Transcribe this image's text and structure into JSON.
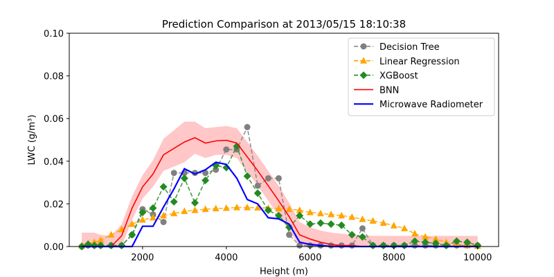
{
  "chart_data": {
    "type": "line",
    "title": "Prediction Comparison at 2013/05/15 18:10:38",
    "xlabel": "Height (m)",
    "ylabel": "LWC (g/m³)",
    "xlim": [
      250,
      10500
    ],
    "ylim": [
      0,
      0.1
    ],
    "xticks": [
      2000,
      4000,
      6000,
      8000,
      10000
    ],
    "yticks": [
      0.0,
      0.02,
      0.04,
      0.06,
      0.08,
      0.1
    ],
    "xtick_labels": [
      "2000",
      "4000",
      "6000",
      "8000",
      "10000"
    ],
    "ytick_labels": [
      "0.00",
      "0.02",
      "0.04",
      "0.06",
      "0.08",
      "0.10"
    ],
    "legend_position": "top-right",
    "series": [
      {
        "name": "Decision Tree",
        "color": "#808080",
        "style": "dashed",
        "marker": "circle",
        "x": [
          550,
          700,
          850,
          1000,
          1250,
          1500,
          1750,
          2000,
          2250,
          2500,
          2750,
          3000,
          3250,
          3500,
          3750,
          4000,
          4250,
          4500,
          4750,
          5000,
          5250,
          5500,
          5750,
          6000,
          6250,
          6500,
          6750,
          7000,
          7250,
          7500,
          7750,
          8000,
          8250,
          8500,
          8750,
          9000,
          9250,
          9500,
          9750,
          10000
        ],
        "y": [
          0.0,
          0.0005,
          0.0005,
          0.0005,
          0.0005,
          0.0005,
          0.0055,
          0.0175,
          0.015,
          0.0115,
          0.0345,
          0.0345,
          0.0345,
          0.0345,
          0.036,
          0.0455,
          0.0455,
          0.056,
          0.0285,
          0.032,
          0.032,
          0.0055,
          0.0005,
          0.0005,
          0.0005,
          0.0005,
          0.0005,
          0.0005,
          0.0085,
          0.0005,
          0.0005,
          0.0005,
          0.0005,
          0.0005,
          0.0005,
          0.0005,
          0.0005,
          0.0005,
          0.0005,
          0.0005
        ]
      },
      {
        "name": "Linear Regression",
        "color": "#FFA500",
        "style": "dashed",
        "marker": "triangle",
        "x": [
          550,
          700,
          850,
          1000,
          1250,
          1500,
          1750,
          2000,
          2250,
          2500,
          2750,
          3000,
          3250,
          3500,
          3750,
          4000,
          4250,
          4500,
          4750,
          5000,
          5250,
          5500,
          5750,
          6000,
          6250,
          6500,
          6750,
          7000,
          7250,
          7500,
          7750,
          8000,
          8250,
          8500,
          8750,
          9000,
          9250,
          9500,
          9750,
          10000
        ],
        "y": [
          0.0005,
          0.0015,
          0.002,
          0.003,
          0.0055,
          0.008,
          0.0105,
          0.0125,
          0.0135,
          0.0145,
          0.0155,
          0.0165,
          0.017,
          0.0175,
          0.0178,
          0.018,
          0.0183,
          0.0183,
          0.0182,
          0.018,
          0.0178,
          0.0175,
          0.017,
          0.016,
          0.0155,
          0.015,
          0.0145,
          0.0138,
          0.0128,
          0.012,
          0.011,
          0.0098,
          0.0085,
          0.006,
          0.0045,
          0.0035,
          0.002,
          0.001,
          0.0005,
          0.0002
        ]
      },
      {
        "name": "XGBoost",
        "color": "#228B22",
        "style": "dashed",
        "marker": "diamond",
        "x": [
          550,
          700,
          850,
          1000,
          1250,
          1500,
          1750,
          2000,
          2250,
          2500,
          2750,
          3000,
          3250,
          3500,
          3750,
          4000,
          4250,
          4500,
          4750,
          5000,
          5250,
          5500,
          5750,
          6000,
          6250,
          6500,
          6750,
          7000,
          7250,
          7500,
          7750,
          8000,
          8250,
          8500,
          8750,
          9000,
          9250,
          9500,
          9750,
          10000
        ],
        "y": [
          0.0,
          0.001,
          0.0005,
          0.0005,
          0.0005,
          0.0005,
          0.0055,
          0.016,
          0.018,
          0.028,
          0.021,
          0.032,
          0.0205,
          0.031,
          0.038,
          0.037,
          0.047,
          0.033,
          0.025,
          0.017,
          0.0145,
          0.009,
          0.0145,
          0.0105,
          0.011,
          0.0105,
          0.01,
          0.0055,
          0.0045,
          0.0005,
          0.0005,
          0.0005,
          0.0005,
          0.0025,
          0.002,
          0.0015,
          0.0005,
          0.0025,
          0.002,
          0.0005
        ]
      },
      {
        "name": "BNN",
        "color": "#FF0000",
        "style": "solid",
        "marker": "none",
        "x": [
          550,
          700,
          850,
          1000,
          1250,
          1500,
          1750,
          2000,
          2250,
          2500,
          2750,
          3000,
          3250,
          3500,
          3750,
          4000,
          4250,
          4500,
          4750,
          5000,
          5250,
          5500,
          5750,
          6000,
          6250,
          6500,
          6750,
          7000,
          7250,
          7500,
          7750,
          8000,
          8250,
          8500,
          8750,
          9000,
          9250,
          9500,
          9750,
          10000
        ],
        "y": [
          0.0,
          0.0,
          0.0,
          0.0,
          0.0,
          0.005,
          0.018,
          0.028,
          0.034,
          0.043,
          0.046,
          0.049,
          0.051,
          0.0485,
          0.0495,
          0.0498,
          0.0485,
          0.042,
          0.0355,
          0.0285,
          0.0215,
          0.014,
          0.0055,
          0.0035,
          0.002,
          0.001,
          0.0005,
          0.0005,
          0.0,
          0.0,
          0.0,
          0.0,
          0.0,
          0.0,
          0.0,
          0.0,
          0.0,
          0.0,
          0.0,
          0.0
        ],
        "band_upper": [
          0.0065,
          0.0065,
          0.0065,
          0.0055,
          0.005,
          0.0105,
          0.0235,
          0.0335,
          0.0405,
          0.0505,
          0.0545,
          0.0585,
          0.0585,
          0.0555,
          0.056,
          0.0565,
          0.0555,
          0.049,
          0.0425,
          0.0355,
          0.0285,
          0.0205,
          0.0115,
          0.009,
          0.0075,
          0.0065,
          0.006,
          0.0055,
          0.0055,
          0.005,
          0.005,
          0.005,
          0.005,
          0.005,
          0.005,
          0.005,
          0.005,
          0.005,
          0.005,
          0.005
        ],
        "band_lower": [
          0.0,
          0.0,
          0.0,
          0.0,
          0.0,
          0.0,
          0.0125,
          0.0225,
          0.028,
          0.0355,
          0.0375,
          0.0395,
          0.0435,
          0.0415,
          0.043,
          0.043,
          0.0415,
          0.035,
          0.0285,
          0.0215,
          0.0145,
          0.0075,
          0.0005,
          0.0,
          0.0,
          0.0,
          0.0,
          0.0,
          0.0,
          0.0,
          0.0,
          0.0,
          0.0,
          0.0,
          0.0,
          0.0,
          0.0,
          0.0,
          0.0,
          0.0
        ]
      },
      {
        "name": "Microwave Radiometer",
        "color": "#0000FF",
        "style": "solid",
        "marker": "none",
        "x": [
          550,
          700,
          850,
          1000,
          1250,
          1500,
          1750,
          2000,
          2250,
          2500,
          2750,
          3000,
          3250,
          3500,
          3750,
          4000,
          4250,
          4500,
          4750,
          5000,
          5250,
          5500,
          5750,
          6000,
          6250,
          6500,
          6750,
          7000,
          7250,
          7500,
          7750,
          8000,
          8250,
          8500,
          8750,
          9000,
          9250,
          9500,
          9750,
          10000
        ],
        "y": [
          0.0,
          0.0,
          0.0,
          0.0,
          0.0,
          0.0,
          0.0,
          0.0095,
          0.0095,
          0.0185,
          0.027,
          0.0365,
          0.034,
          0.036,
          0.0395,
          0.0385,
          0.032,
          0.022,
          0.02,
          0.0135,
          0.013,
          0.0105,
          0.002,
          0.001,
          0.0005,
          0.0,
          0.0,
          0.0,
          0.0,
          0.0,
          0.0,
          0.0,
          0.0,
          0.0,
          0.0,
          0.0,
          0.0,
          0.0,
          0.0,
          0.0
        ]
      }
    ]
  }
}
